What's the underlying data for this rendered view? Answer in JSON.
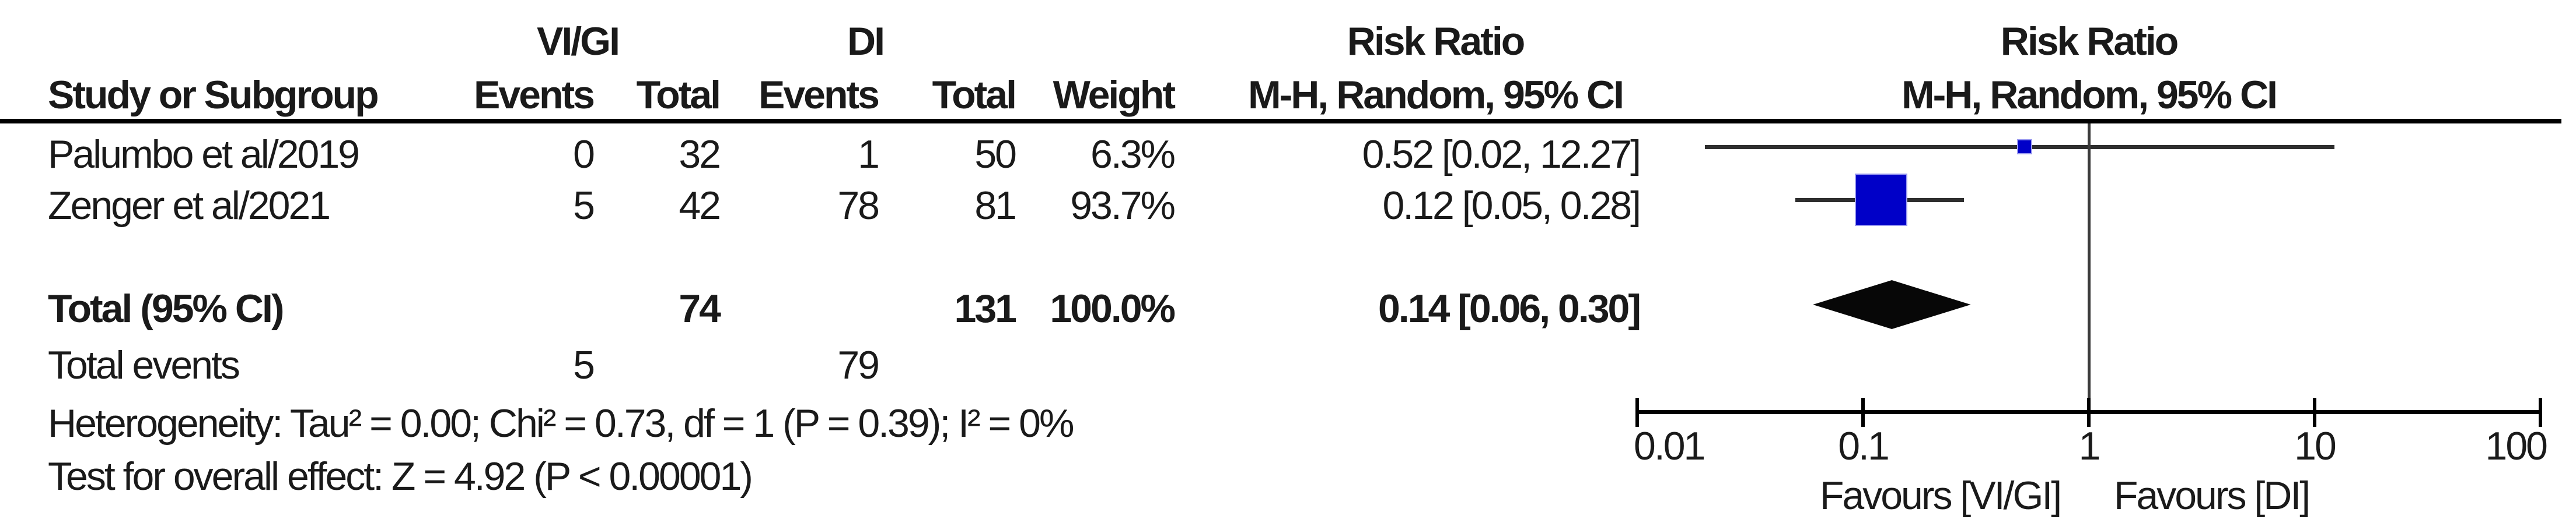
{
  "header": {
    "group1_label": "VI/GI",
    "group2_label": "DI",
    "col_study": "Study or Subgroup",
    "col_events_1": "Events",
    "col_total_1": "Total",
    "col_events_2": "Events",
    "col_total_2": "Total",
    "col_weight": "Weight",
    "rr_col_title": "Risk Ratio",
    "rr_col_subtitle": "M-H, Random, 95% CI",
    "plot_title": "Risk Ratio",
    "plot_subtitle": "M-H, Random, 95% CI"
  },
  "chart_data": {
    "type": "forest",
    "scale": "log10",
    "effect_measure": "Risk Ratio",
    "method": "M-H, Random, 95% CI",
    "axis": {
      "xlim": [
        0.01,
        100
      ],
      "ticks": [
        0.01,
        0.1,
        1,
        10,
        100
      ],
      "tick_labels": [
        "0.01",
        "0.1",
        "1",
        "10",
        "100"
      ],
      "favours_left": "Favours [VI/GI]",
      "favours_right": "Favours [DI]"
    },
    "studies": [
      {
        "study": "Palumbo et al/2019",
        "g1_events": "0",
        "g1_total": "32",
        "g2_events": "1",
        "g2_total": "50",
        "weight": "6.3%",
        "weight_pct": 6.3,
        "rr_text": "0.52 [0.02, 12.27]",
        "rr": 0.52,
        "ci_low": 0.02,
        "ci_high": 12.27
      },
      {
        "study": "Zenger et al/2021",
        "g1_events": "5",
        "g1_total": "42",
        "g2_events": "78",
        "g2_total": "81",
        "weight": "93.7%",
        "weight_pct": 93.7,
        "rr_text": "0.12 [0.05, 0.28]",
        "rr": 0.12,
        "ci_low": 0.05,
        "ci_high": 0.28
      }
    ],
    "total": {
      "label": "Total (95% CI)",
      "g1_total": "74",
      "g2_total": "131",
      "weight": "100.0%",
      "rr_text": "0.14 [0.06, 0.30]",
      "rr": 0.14,
      "ci_low": 0.06,
      "ci_high": 0.3
    },
    "total_events": {
      "label": "Total events",
      "g1_events": "5",
      "g2_events": "79"
    },
    "heterogeneity": "Heterogeneity: Tau² = 0.00; Chi² = 0.73, df = 1 (P = 0.39); I² = 0%",
    "overall_effect": "Test for overall effect: Z = 4.92 (P < 0.00001)",
    "marker_color": "#0000c8",
    "diamond_color": "#070707"
  }
}
